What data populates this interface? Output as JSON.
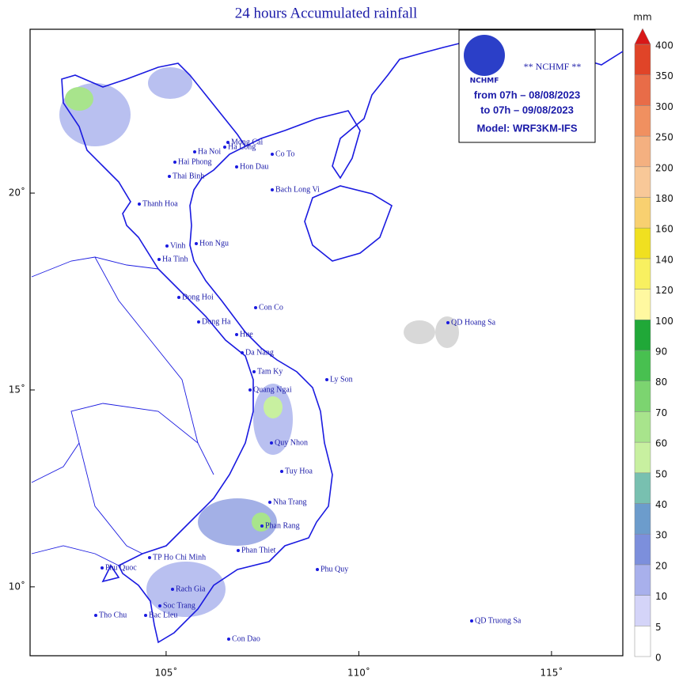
{
  "map": {
    "title": "24 hours Accumulated rainfall",
    "unit": "mm",
    "info": {
      "logo": "NCHMF",
      "agency": "** NCHMF **",
      "from": "from 07h – 08/08/2023",
      "to": "to 07h – 09/08/2023",
      "model": "Model: WRF3KM-IFS"
    },
    "xticks": [
      {
        "value": 105,
        "label": "105˚"
      },
      {
        "value": 110,
        "label": "110˚"
      },
      {
        "value": 115,
        "label": "115˚"
      }
    ],
    "yticks": [
      {
        "value": 10,
        "label": "10˚"
      },
      {
        "value": 15,
        "label": "15˚"
      },
      {
        "value": 20,
        "label": "20˚"
      }
    ],
    "xlim": [
      101.47,
      116.85
    ],
    "ylim": [
      8.25,
      24.16
    ],
    "legend": {
      "levels": [
        0,
        5,
        10,
        20,
        30,
        40,
        50,
        60,
        70,
        80,
        90,
        100,
        120,
        140,
        160,
        180,
        200,
        250,
        300,
        350,
        400
      ],
      "colors": [
        "#ffffff",
        "#d4d4f8",
        "#a8b0ec",
        "#7c8fdc",
        "#6c9ccc",
        "#78c0b0",
        "#c8f0a0",
        "#a8e48c",
        "#7cd470",
        "#48c050",
        "#20a838",
        "#fff8a0",
        "#f8f060",
        "#f0e020",
        "#f8d070",
        "#f8c898",
        "#f4b080",
        "#f09060",
        "#e86c48",
        "#e04428",
        "#d81818"
      ]
    },
    "places": [
      "Mong Cai",
      "Ha Long",
      "Co To",
      "Ha Noi",
      "Hai Phong",
      "Hon Dau",
      "Thai Binh",
      "Bach Long Vi",
      "Thanh Hoa",
      "Hon Ngu",
      "Vinh",
      "Ha Tinh",
      "Dong Hoi",
      "Con Co",
      "Dong Ha",
      "Hue",
      "Da Nang",
      "QD Hoang Sa",
      "Tam Ky",
      "Ly Son",
      "Quang Ngai",
      "Quy Nhon",
      "Tuy Hoa",
      "Nha Trang",
      "Phan Rang",
      "Phan Thiet",
      "TP Ho Chi Minh",
      "Phu Quy",
      "Phu Quoc",
      "Rach Gia",
      "Soc Trang",
      "Bac Lieu",
      "Tho Chu",
      "Con Dao",
      "QD Truong Sa"
    ]
  }
}
